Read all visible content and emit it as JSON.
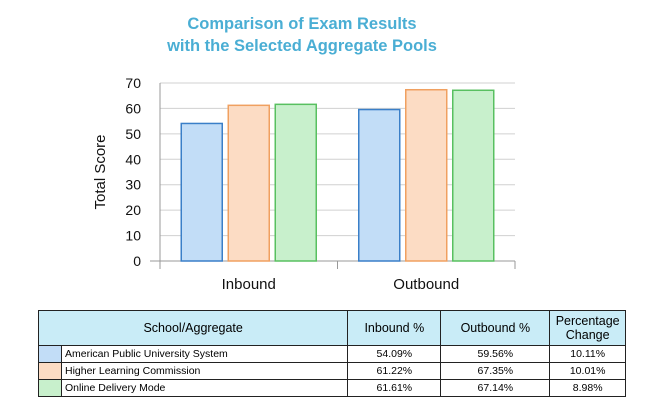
{
  "chart_data": {
    "type": "bar",
    "title_lines": [
      "Comparison of Exam Results",
      "with the Selected Aggregate Pools"
    ],
    "ylabel": "Total Score",
    "xlabel": "",
    "categories": [
      "Inbound",
      "Outbound"
    ],
    "ylim": [
      0,
      70
    ],
    "yticks": [
      0,
      10,
      20,
      30,
      40,
      50,
      60,
      70
    ],
    "grid": true,
    "series": [
      {
        "name": "American Public University System",
        "values": [
          54.09,
          59.56
        ],
        "fill": "#c2ddf7",
        "stroke": "#3a7fc8"
      },
      {
        "name": "Higher Learning Commission",
        "values": [
          61.22,
          67.35
        ],
        "fill": "#fcdcc4",
        "stroke": "#f0a060"
      },
      {
        "name": "Online Delivery Mode",
        "values": [
          61.61,
          67.14
        ],
        "fill": "#c8f0cc",
        "stroke": "#58c060"
      }
    ]
  },
  "table": {
    "headers": {
      "school": "School/Aggregate",
      "inbound": "Inbound %",
      "outbound": "Outbound %",
      "change_line1": "Percentage",
      "change_line2": "Change"
    },
    "rows": [
      {
        "name": "American Public University System",
        "inbound": "54.09%",
        "outbound": "59.56%",
        "change": "10.11%",
        "color": "#c2ddf7"
      },
      {
        "name": "Higher Learning Commission",
        "inbound": "61.22%",
        "outbound": "67.35%",
        "change": "10.01%",
        "color": "#fcdcc4"
      },
      {
        "name": "Online Delivery Mode",
        "inbound": "61.61%",
        "outbound": "67.14%",
        "change": "8.98%",
        "color": "#c8f0cc"
      }
    ]
  }
}
